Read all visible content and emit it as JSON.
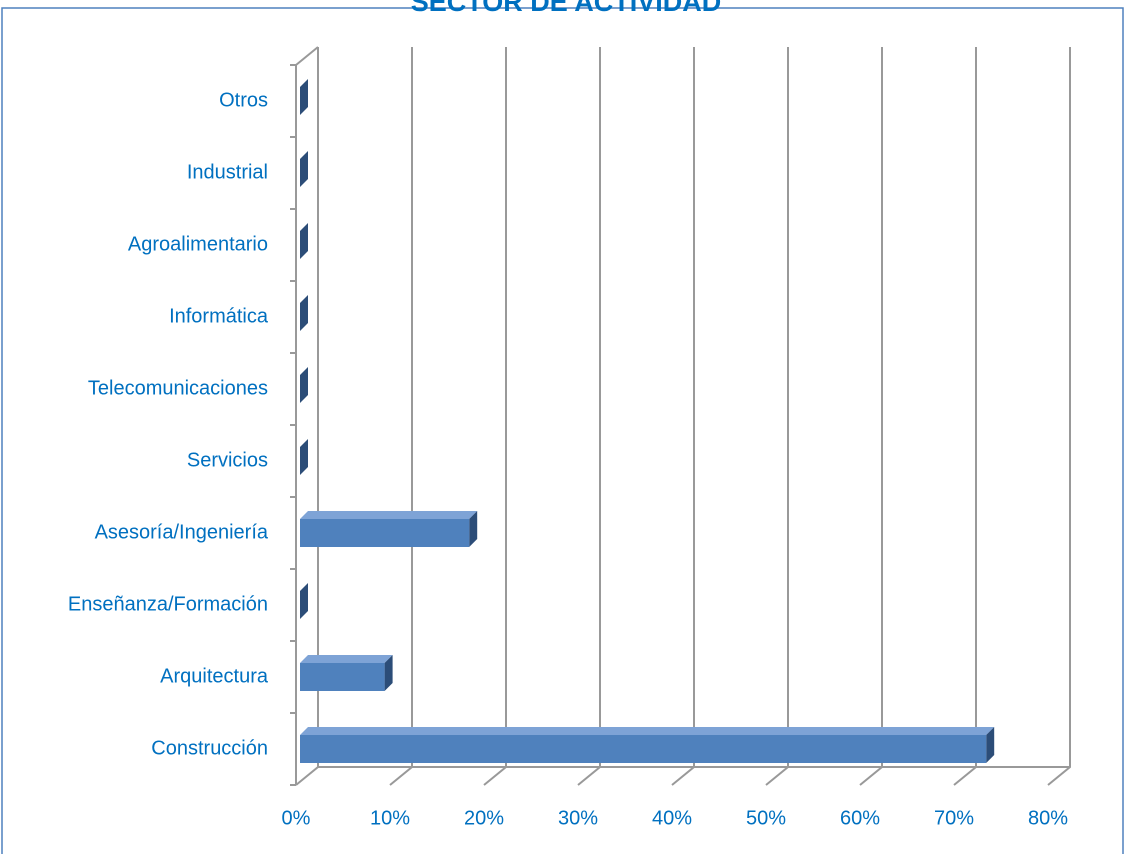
{
  "chart_data": {
    "type": "bar3d_horizontal",
    "title": "SECTOR DE ACTIVIDAD",
    "categories": [
      "Construcción",
      "Arquitectura",
      "Enseñanza/Formación",
      "Asesoría/Ingeniería",
      "Servicios",
      "Telecomunicaciones",
      "Informática",
      "Agroalimentario",
      "Industrial",
      "Otros"
    ],
    "values": [
      73,
      9,
      0,
      18,
      0,
      0,
      0,
      0,
      0,
      0
    ],
    "color": "#4f81bd",
    "xlim": [
      0,
      80
    ],
    "xticks": [
      {
        "value": 0,
        "label": "0%"
      },
      {
        "value": 10,
        "label": "10%"
      },
      {
        "value": 20,
        "label": "20%"
      },
      {
        "value": 30,
        "label": "30%"
      },
      {
        "value": 40,
        "label": "40%"
      },
      {
        "value": 50,
        "label": "50%"
      },
      {
        "value": 60,
        "label": "60%"
      },
      {
        "value": 70,
        "label": "70%"
      },
      {
        "value": 80,
        "label": "80%"
      }
    ],
    "grid": true
  }
}
